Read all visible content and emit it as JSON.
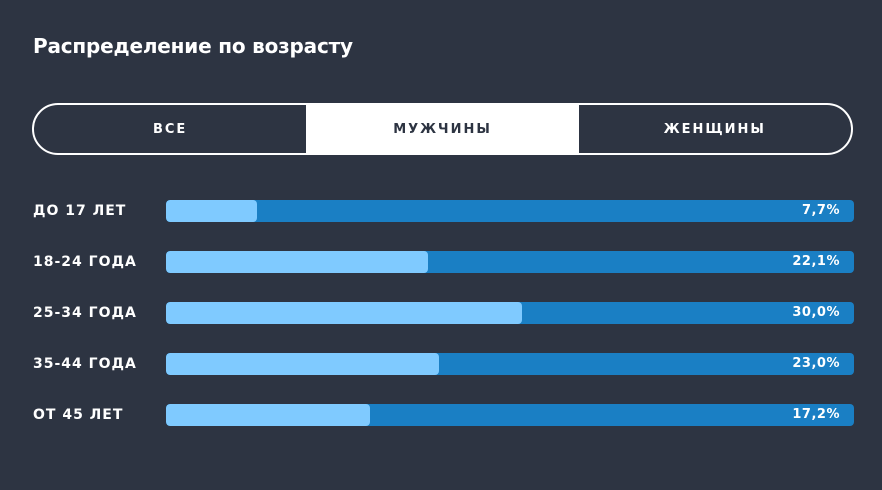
{
  "title": "Распределение по возрасту",
  "tabs": [
    {
      "label": "ВСЕ",
      "active": false
    },
    {
      "label": "МУЖЧИНЫ",
      "active": true
    },
    {
      "label": "ЖЕНЩИНЫ",
      "active": false
    }
  ],
  "colors": {
    "background": "#2d3442",
    "track": "#1a7fc4",
    "fill": "#7fcaff",
    "text": "#ffffff"
  },
  "chart_data": {
    "type": "bar",
    "orientation": "horizontal",
    "categories": [
      "ДО 17 ЛЕТ",
      "18-24 ГОДА",
      "25-34 ГОДА",
      "35-44 ГОДА",
      "ОТ 45 ЛЕТ"
    ],
    "values": [
      7.7,
      22.1,
      30.0,
      23.0,
      17.2
    ],
    "value_labels": [
      "7,7%",
      "22,1%",
      "30,0%",
      "23,0%",
      "17,2%"
    ],
    "unit": "%",
    "xlim": [
      0,
      100
    ]
  }
}
